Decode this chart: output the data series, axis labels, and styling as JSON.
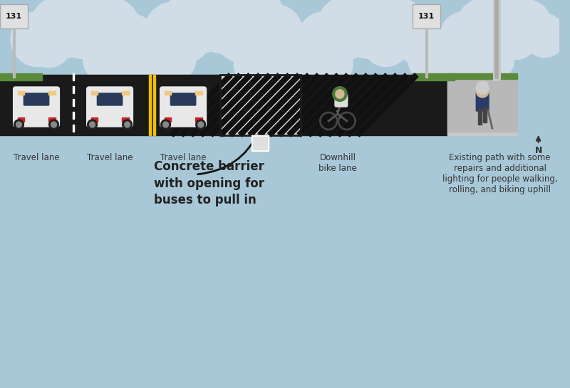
{
  "bg_sky_color": "#a8c8d8",
  "cloud_color": "#d0dde6",
  "road_color": "#1a1a1a",
  "road_marking_color": "#555555",
  "sidewalk_color": "#c8c8c8",
  "grass_color": "#5a8a3a",
  "white": "#ffffff",
  "yellow": "#f0c000",
  "barrier_stripe_black": "#111111",
  "barrier_stripe_white": "#dddddd",
  "car_body_color": "#e8e8e8",
  "car_window_color": "#2a3a5a",
  "car_light_color": "#f0c880",
  "car_brake_color": "#cc2222",
  "arrow_color": "#888888",
  "text_color": "#222222",
  "label_color": "#333333",
  "sign_color": "#cccccc",
  "sign_text_color": "#111111",
  "pole_color": "#bbbbbb",
  "person_shirt_color": "#2a3a6a",
  "person_pants_color": "#444444",
  "person_skin_color": "#d4b896",
  "person_hair_color": "#cccccc",
  "biker_helmet_color": "#4a7a3a",
  "lamp_color": "#c8c8c8",
  "annotation_text": "Concrete barrier\nwith opening for\nbuses to pull in",
  "lane_labels": [
    "Travel lane",
    "Travel lane",
    "Travel lane",
    "Downhill\nbike lane",
    "Existing path with some\nrepairs and additional\nlighting for people walking,\nrolling, and biking uphill"
  ],
  "route_number": "131",
  "north_label": "N"
}
